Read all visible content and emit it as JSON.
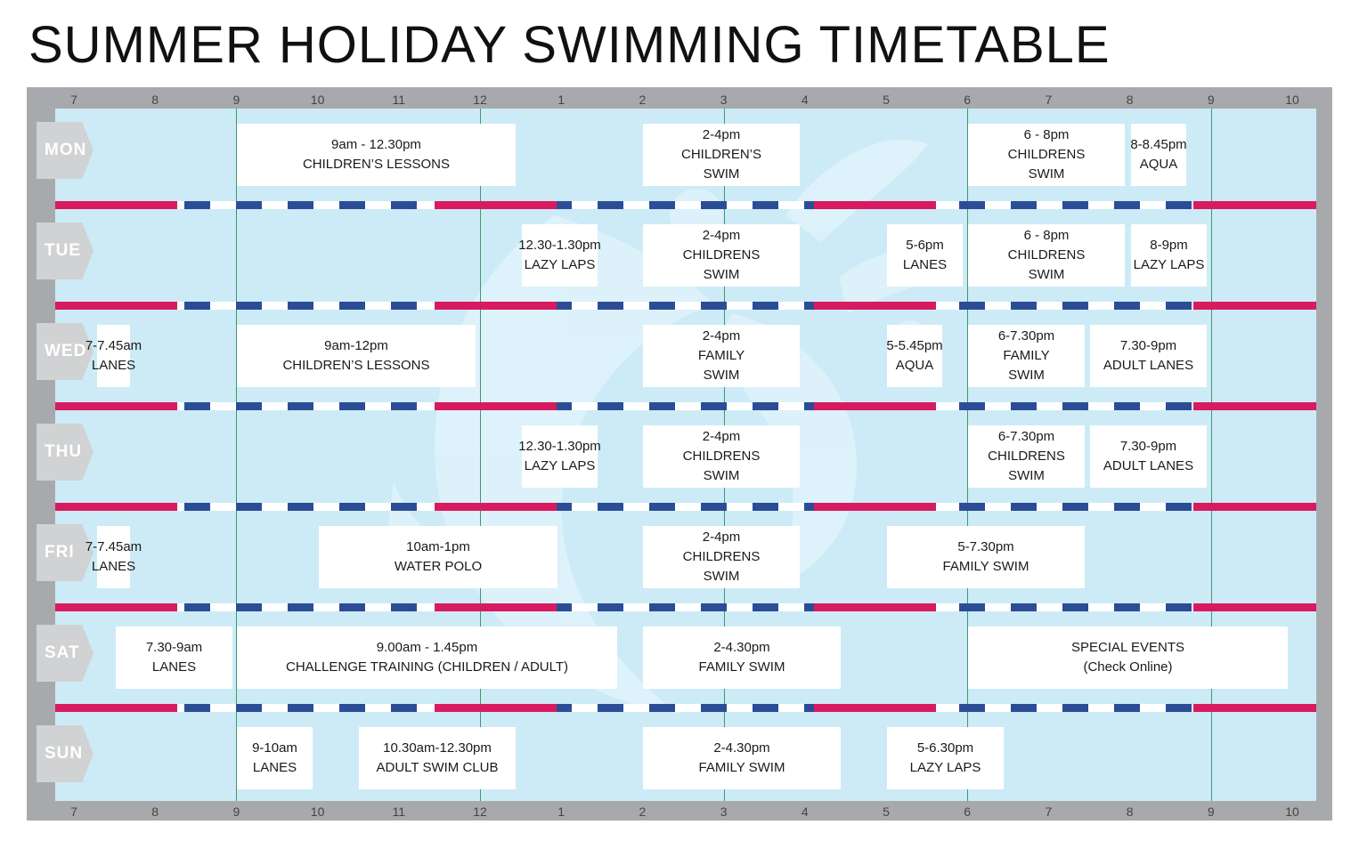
{
  "title": "SUMMER HOLIDAY SWIMMING TIMETABLE",
  "hour_labels": [
    "7",
    "8",
    "9",
    "10",
    "11",
    "12",
    "1",
    "2",
    "3",
    "4",
    "5",
    "6",
    "7",
    "8",
    "9",
    "10"
  ],
  "colors": {
    "frame": "#a7a9ac",
    "pool": "#cdebf6",
    "rope_pink": "#d81b60",
    "rope_blue": "#2c4d96",
    "hour_line": "#3a9a6e",
    "day_tag": "#d0d2d3"
  },
  "days": [
    {
      "label": "MON",
      "sessions": [
        {
          "start": 9,
          "end": 12.5,
          "lines": [
            "9am - 12.30pm",
            "CHILDREN’S LESSONS"
          ]
        },
        {
          "start": 14,
          "end": 16,
          "lines": [
            "2-4pm",
            "CHILDREN’S",
            "SWIM"
          ]
        },
        {
          "start": 18,
          "end": 20,
          "lines": [
            "6 - 8pm",
            "CHILDRENS",
            "SWIM"
          ]
        },
        {
          "start": 20,
          "end": 20.75,
          "lines": [
            "8-8.45pm",
            "AQUA"
          ]
        }
      ]
    },
    {
      "label": "TUE",
      "sessions": [
        {
          "start": 12.5,
          "end": 13.5,
          "lines": [
            "12.30-1.30pm",
            "LAZY LAPS"
          ]
        },
        {
          "start": 14,
          "end": 16,
          "lines": [
            "2-4pm",
            "CHILDRENS",
            "SWIM"
          ]
        },
        {
          "start": 17,
          "end": 18,
          "lines": [
            "5-6pm",
            "LANES"
          ]
        },
        {
          "start": 18,
          "end": 20,
          "lines": [
            "6 - 8pm",
            "CHILDRENS",
            "SWIM"
          ]
        },
        {
          "start": 20,
          "end": 21,
          "lines": [
            "8-9pm",
            "LAZY LAPS"
          ]
        }
      ]
    },
    {
      "label": "WED",
      "sessions": [
        {
          "start": 7,
          "end": 7.75,
          "lines": [
            "7-7.45am",
            "LANES"
          ]
        },
        {
          "start": 9,
          "end": 12,
          "lines": [
            "9am-12pm",
            "CHILDREN’S LESSONS"
          ]
        },
        {
          "start": 14,
          "end": 16,
          "lines": [
            "2-4pm",
            "FAMILY",
            "SWIM"
          ]
        },
        {
          "start": 17,
          "end": 17.75,
          "lines": [
            "5-5.45pm",
            "AQUA"
          ]
        },
        {
          "start": 18,
          "end": 19.5,
          "lines": [
            "6-7.30pm",
            "FAMILY",
            "SWIM"
          ]
        },
        {
          "start": 19.5,
          "end": 21,
          "lines": [
            "7.30-9pm",
            "ADULT LANES"
          ]
        }
      ]
    },
    {
      "label": "THU",
      "sessions": [
        {
          "start": 12.5,
          "end": 13.5,
          "lines": [
            "12.30-1.30pm",
            "LAZY LAPS"
          ]
        },
        {
          "start": 14,
          "end": 16,
          "lines": [
            "2-4pm",
            "CHILDRENS",
            "SWIM"
          ]
        },
        {
          "start": 18,
          "end": 19.5,
          "lines": [
            "6-7.30pm",
            "CHILDRENS",
            "SWIM"
          ]
        },
        {
          "start": 19.5,
          "end": 21,
          "lines": [
            "7.30-9pm",
            "ADULT LANES"
          ]
        }
      ]
    },
    {
      "label": "FRI",
      "sessions": [
        {
          "start": 7,
          "end": 7.75,
          "lines": [
            "7-7.45am",
            "LANES"
          ]
        },
        {
          "start": 10,
          "end": 13,
          "lines": [
            "10am-1pm",
            "WATER POLO"
          ]
        },
        {
          "start": 14,
          "end": 16,
          "lines": [
            "2-4pm",
            "CHILDRENS",
            "SWIM"
          ]
        },
        {
          "start": 17,
          "end": 19.5,
          "lines": [
            "5-7.30pm",
            "FAMILY SWIM"
          ]
        }
      ]
    },
    {
      "label": "SAT",
      "sessions": [
        {
          "start": 7.5,
          "end": 9,
          "lines": [
            "7.30-9am",
            "LANES"
          ]
        },
        {
          "start": 9,
          "end": 13.75,
          "lines": [
            "9.00am - 1.45pm",
            "CHALLENGE TRAINING (CHILDREN / ADULT)"
          ]
        },
        {
          "start": 14,
          "end": 16.5,
          "lines": [
            "2-4.30pm",
            "FAMILY SWIM"
          ]
        },
        {
          "start": 18,
          "end": 22,
          "lines": [
            "SPECIAL EVENTS",
            "(Check Online)"
          ]
        }
      ]
    },
    {
      "label": "SUN",
      "sessions": [
        {
          "start": 9,
          "end": 10,
          "lines": [
            "9-10am",
            "LANES"
          ]
        },
        {
          "start": 10.5,
          "end": 12.5,
          "lines": [
            "10.30am-12.30pm",
            "ADULT SWIM CLUB"
          ]
        },
        {
          "start": 14,
          "end": 16.5,
          "lines": [
            "2-4.30pm",
            "FAMILY SWIM"
          ]
        },
        {
          "start": 17,
          "end": 18.5,
          "lines": [
            "5-6.30pm",
            "LAZY LAPS"
          ]
        }
      ]
    }
  ]
}
